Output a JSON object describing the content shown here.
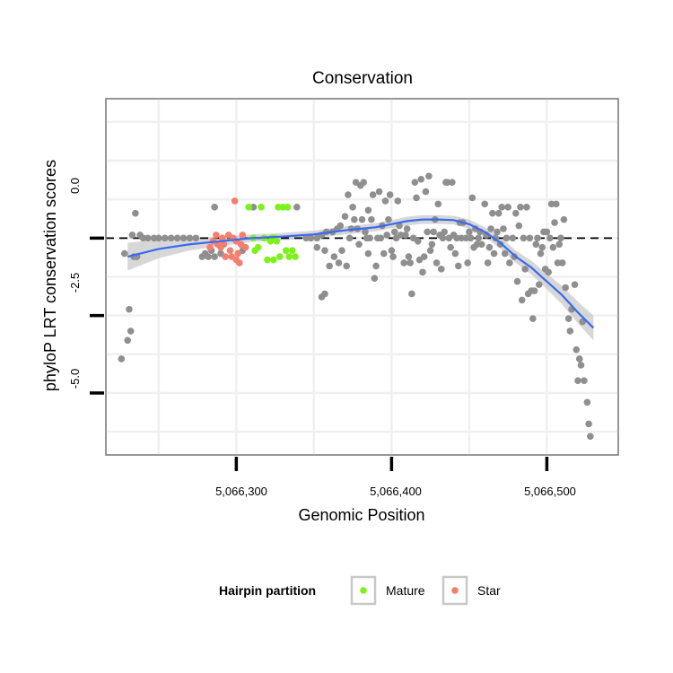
{
  "chart_data": {
    "type": "scatter",
    "title": "Conservation",
    "xlabel": "Genomic Position",
    "ylabel": "phyloP LRT conservation scores",
    "xlim": [
      5066216,
      5066546
    ],
    "ylim": [
      -7.0,
      4.5
    ],
    "x_ticks": [
      5066300,
      5066400,
      5066500
    ],
    "x_tick_labels": [
      "5,066,300",
      "5,066,400",
      "5,066,500"
    ],
    "y_ticks": [
      0,
      -2.5,
      -5
    ],
    "y_tick_labels": [
      "0.0",
      "-2.5",
      "-5.0"
    ],
    "reference_line": {
      "y": 0,
      "style": "dashed"
    },
    "legend": {
      "title": "Hairpin partition",
      "position": "bottom",
      "entries": [
        {
          "label": "Mature",
          "color": "#7CF21A"
        },
        {
          "label": "Star",
          "color": "#F47F6E"
        }
      ]
    },
    "colors": {
      "other": "#8f8f8f",
      "mature": "#7CF21A",
      "star": "#F47F6E",
      "smooth": "#3B6AF0",
      "band": "#c9c9c9"
    },
    "series": [
      {
        "name": "Other",
        "points": [
          [
            5066226,
            -3.9
          ],
          [
            5066228,
            -0.5
          ],
          [
            5066230,
            -3.3
          ],
          [
            5066231,
            -2.3
          ],
          [
            5066232,
            -3.0
          ],
          [
            5066233,
            0.1
          ],
          [
            5066234,
            -0.6
          ],
          [
            5066235,
            0.8
          ],
          [
            5066236,
            -0.6
          ],
          [
            5066238,
            0.1
          ],
          [
            5066240,
            0.0
          ],
          [
            5066243,
            0.0
          ],
          [
            5066247,
            0.0
          ],
          [
            5066250,
            0.0
          ],
          [
            5066254,
            0.0
          ],
          [
            5066258,
            0.0
          ],
          [
            5066262,
            0.0
          ],
          [
            5066266,
            0.0
          ],
          [
            5066270,
            0.0
          ],
          [
            5066274,
            0.0
          ],
          [
            5066278,
            -0.6
          ],
          [
            5066280,
            -0.5
          ],
          [
            5066282,
            -0.6
          ],
          [
            5066284,
            -0.4
          ],
          [
            5066286,
            -0.6
          ],
          [
            5066286,
            1.0
          ],
          [
            5066290,
            -0.5
          ],
          [
            5066304,
            -0.4
          ],
          [
            5066311,
            1.0
          ],
          [
            5066339,
            1.0
          ],
          [
            5066352,
            -0.3
          ],
          [
            5066345,
            0.0
          ],
          [
            5066348,
            0.0
          ],
          [
            5066352,
            0.0
          ],
          [
            5066355,
            0.1
          ],
          [
            5066355,
            -1.9
          ],
          [
            5066357,
            -1.8
          ],
          [
            5066357,
            -0.4
          ],
          [
            5066358,
            0.2
          ],
          [
            5066360,
            -0.9
          ],
          [
            5066362,
            0.2
          ],
          [
            5066363,
            -0.6
          ],
          [
            5066365,
            0.3
          ],
          [
            5066366,
            -0.8
          ],
          [
            5066367,
            0.4
          ],
          [
            5066368,
            -0.4
          ],
          [
            5066370,
            0.7
          ],
          [
            5066371,
            -0.9
          ],
          [
            5066372,
            1.4
          ],
          [
            5066373,
            0.0
          ],
          [
            5066374,
            0.3
          ],
          [
            5066375,
            1.0
          ],
          [
            5066376,
            0.6
          ],
          [
            5066377,
            1.8
          ],
          [
            5066378,
            0.3
          ],
          [
            5066379,
            -0.2
          ],
          [
            5066380,
            1.7
          ],
          [
            5066381,
            0.6
          ],
          [
            5066382,
            1.8
          ],
          [
            5066383,
            0.2
          ],
          [
            5066384,
            0.0
          ],
          [
            5066385,
            0.9
          ],
          [
            5066385,
            -0.5
          ],
          [
            5066386,
            0.0
          ],
          [
            5066387,
            0.6
          ],
          [
            5066388,
            1.4
          ],
          [
            5066389,
            -1.3
          ],
          [
            5066390,
            -0.9
          ],
          [
            5066391,
            0.0
          ],
          [
            5066392,
            1.5
          ],
          [
            5066393,
            0.0
          ],
          [
            5066394,
            0.4
          ],
          [
            5066395,
            -0.5
          ],
          [
            5066396,
            1.2
          ],
          [
            5066397,
            0.1
          ],
          [
            5066398,
            0.6
          ],
          [
            5066399,
            1.4
          ],
          [
            5066400,
            -0.4
          ],
          [
            5066401,
            -0.6
          ],
          [
            5066402,
            0.2
          ],
          [
            5066403,
            0.0
          ],
          [
            5066404,
            1.2
          ],
          [
            5066405,
            0.4
          ],
          [
            5066406,
            0.1
          ],
          [
            5066408,
            -0.8
          ],
          [
            5066409,
            0.1
          ],
          [
            5066410,
            0.3
          ],
          [
            5066411,
            -0.6
          ],
          [
            5066412,
            -0.8
          ],
          [
            5066413,
            -1.8
          ],
          [
            5066414,
            0.0
          ],
          [
            5066415,
            1.8
          ],
          [
            5066416,
            1.3
          ],
          [
            5066417,
            -0.1
          ],
          [
            5066418,
            -0.7
          ],
          [
            5066419,
            1.9
          ],
          [
            5066420,
            -1.1
          ],
          [
            5066421,
            -0.6
          ],
          [
            5066422,
            1.5
          ],
          [
            5066423,
            0.2
          ],
          [
            5066424,
            2.0
          ],
          [
            5066425,
            -0.4
          ],
          [
            5066426,
            -0.2
          ],
          [
            5066427,
            0.2
          ],
          [
            5066428,
            0.6
          ],
          [
            5066429,
            -0.8
          ],
          [
            5066430,
            1.1
          ],
          [
            5066431,
            0.1
          ],
          [
            5066432,
            -1.0
          ],
          [
            5066433,
            0.0
          ],
          [
            5066434,
            0.2
          ],
          [
            5066435,
            1.8
          ],
          [
            5066436,
            1.8
          ],
          [
            5066437,
            0.0
          ],
          [
            5066438,
            -0.3
          ],
          [
            5066439,
            1.8
          ],
          [
            5066440,
            0.1
          ],
          [
            5066441,
            -0.5
          ],
          [
            5066442,
            0.0
          ],
          [
            5066443,
            -0.9
          ],
          [
            5066444,
            0.5
          ],
          [
            5066445,
            0.0
          ],
          [
            5066446,
            0.5
          ],
          [
            5066448,
            0.0
          ],
          [
            5066449,
            -0.8
          ],
          [
            5066450,
            0.2
          ],
          [
            5066451,
            0.0
          ],
          [
            5066452,
            1.3
          ],
          [
            5066453,
            -0.3
          ],
          [
            5066454,
            0.3
          ],
          [
            5066455,
            -0.2
          ],
          [
            5066456,
            0.0
          ],
          [
            5066457,
            0.2
          ],
          [
            5066458,
            -0.2
          ],
          [
            5066460,
            1.1
          ],
          [
            5066461,
            0.1
          ],
          [
            5066462,
            -0.8
          ],
          [
            5066463,
            -0.3
          ],
          [
            5066464,
            0.3
          ],
          [
            5066465,
            0.8
          ],
          [
            5066466,
            -0.5
          ],
          [
            5066467,
            0.0
          ],
          [
            5066468,
            0.2
          ],
          [
            5066469,
            0.8
          ],
          [
            5066470,
            -0.2
          ],
          [
            5066471,
            1.0
          ],
          [
            5066472,
            0.3
          ],
          [
            5066473,
            -0.5
          ],
          [
            5066474,
            0.0
          ],
          [
            5066475,
            1.0
          ],
          [
            5066476,
            -0.8
          ],
          [
            5066478,
            0.0
          ],
          [
            5066479,
            -0.6
          ],
          [
            5066480,
            0.8
          ],
          [
            5066481,
            -1.4
          ],
          [
            5066482,
            0.4
          ],
          [
            5066483,
            1.0
          ],
          [
            5066484,
            -2.0
          ],
          [
            5066485,
            0.0
          ],
          [
            5066486,
            -1.0
          ],
          [
            5066487,
            1.0
          ],
          [
            5066488,
            -1.8
          ],
          [
            5066489,
            0.0
          ],
          [
            5066490,
            -1.7
          ],
          [
            5066491,
            -2.6
          ],
          [
            5066492,
            -1.7
          ],
          [
            5066493,
            -0.2
          ],
          [
            5066494,
            0.0
          ],
          [
            5066495,
            -1.5
          ],
          [
            5066496,
            -0.5
          ],
          [
            5066497,
            -0.3
          ],
          [
            5066498,
            0.2
          ],
          [
            5066499,
            -1.0
          ],
          [
            5066500,
            0.2
          ],
          [
            5066501,
            -1.1
          ],
          [
            5066502,
            0.0
          ],
          [
            5066503,
            1.1
          ],
          [
            5066504,
            -0.3
          ],
          [
            5066505,
            0.5
          ],
          [
            5066506,
            1.1
          ],
          [
            5066507,
            -0.8
          ],
          [
            5066508,
            -0.2
          ],
          [
            5066509,
            0.0
          ],
          [
            5066510,
            -0.8
          ],
          [
            5066511,
            0.6
          ],
          [
            5066512,
            -1.6
          ],
          [
            5066514,
            -2.6
          ],
          [
            5066515,
            -3.0
          ],
          [
            5066516,
            -2.3
          ],
          [
            5066518,
            -1.5
          ],
          [
            5066519,
            -3.6
          ],
          [
            5066520,
            -4.6
          ],
          [
            5066521,
            -3.9
          ],
          [
            5066522,
            -4.1
          ],
          [
            5066523,
            -2.7
          ],
          [
            5066524,
            -4.6
          ],
          [
            5066526,
            -5.3
          ],
          [
            5066527,
            -6.0
          ],
          [
            5066528,
            -6.4
          ]
        ]
      },
      {
        "name": "Mature",
        "points": [
          [
            5066308,
            1.0
          ],
          [
            5066311,
            0.0
          ],
          [
            5066312,
            -0.4
          ],
          [
            5066314,
            -0.3
          ],
          [
            5066316,
            1.0
          ],
          [
            5066318,
            0.0
          ],
          [
            5066320,
            -0.7
          ],
          [
            5066322,
            -0.1
          ],
          [
            5066323,
            0.0
          ],
          [
            5066324,
            -0.7
          ],
          [
            5066325,
            0.0
          ],
          [
            5066326,
            -0.1
          ],
          [
            5066327,
            1.0
          ],
          [
            5066328,
            -0.6
          ],
          [
            5066330,
            1.0
          ],
          [
            5066332,
            -0.4
          ],
          [
            5066333,
            1.0
          ],
          [
            5066334,
            -0.6
          ],
          [
            5066336,
            -0.4
          ],
          [
            5066338,
            -0.6
          ]
        ]
      },
      {
        "name": "Star",
        "points": [
          [
            5066283,
            -0.3
          ],
          [
            5066285,
            -0.1
          ],
          [
            5066287,
            0.1
          ],
          [
            5066288,
            -0.2
          ],
          [
            5066290,
            -0.3
          ],
          [
            5066291,
            0.0
          ],
          [
            5066292,
            -0.2
          ],
          [
            5066293,
            -0.6
          ],
          [
            5066295,
            0.1
          ],
          [
            5066296,
            -0.4
          ],
          [
            5066297,
            -0.6
          ],
          [
            5066298,
            0.0
          ],
          [
            5066299,
            1.2
          ],
          [
            5066300,
            -0.7
          ],
          [
            5066301,
            -0.5
          ],
          [
            5066302,
            -0.8
          ],
          [
            5066303,
            -0.2
          ],
          [
            5066304,
            0.1
          ],
          [
            5066306,
            -0.3
          ],
          [
            5066300,
            -0.1
          ]
        ]
      }
    ],
    "smooth_fit": {
      "x": [
        5066230,
        5066250,
        5066270,
        5066290,
        5066310,
        5066330,
        5066350,
        5066370,
        5066390,
        5066400,
        5066410,
        5066420,
        5066430,
        5066440,
        5066450,
        5066460,
        5066470,
        5066480,
        5066490,
        5066500,
        5066510,
        5066520,
        5066530
      ],
      "y": [
        -0.6,
        -0.35,
        -0.2,
        -0.1,
        0.0,
        0.05,
        0.12,
        0.25,
        0.35,
        0.45,
        0.55,
        0.6,
        0.6,
        0.58,
        0.45,
        0.2,
        -0.15,
        -0.6,
        -0.95,
        -1.4,
        -1.85,
        -2.4,
        -2.9
      ],
      "band": [
        0.45,
        0.3,
        0.2,
        0.15,
        0.12,
        0.12,
        0.12,
        0.13,
        0.13,
        0.13,
        0.14,
        0.14,
        0.14,
        0.14,
        0.15,
        0.15,
        0.18,
        0.2,
        0.22,
        0.25,
        0.3,
        0.35,
        0.4
      ]
    }
  }
}
